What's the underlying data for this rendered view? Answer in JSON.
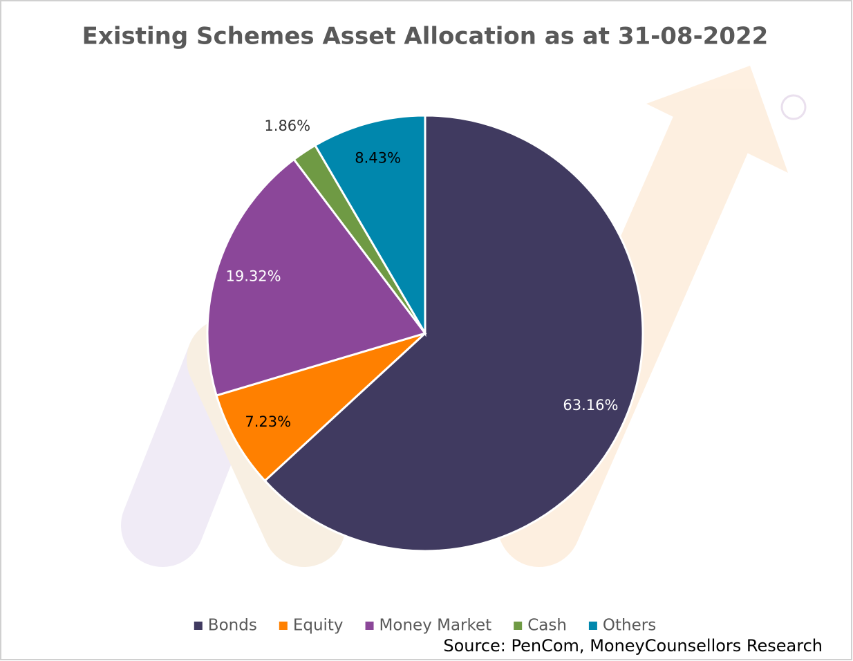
{
  "chart_data": {
    "type": "pie",
    "title": "Existing Schemes Asset Allocation as at 31-08-2022",
    "categories": [
      "Bonds",
      "Equity",
      "Money Market",
      "Cash",
      "Others"
    ],
    "values": [
      63.16,
      7.23,
      19.32,
      1.86,
      8.43
    ],
    "value_labels": [
      "63.16%",
      "7.23%",
      "19.32%",
      "1.86%",
      "8.43%"
    ],
    "colors": [
      "#403a60",
      "#ff8000",
      "#8b4799",
      "#6f9a44",
      "#0087ad"
    ],
    "label_colors": [
      "#ffffff",
      "#000000",
      "#ffffff",
      "#333333",
      "#000000"
    ],
    "legend": "bottom",
    "source": "Source: PenCom, MoneyCounsellors Research"
  }
}
